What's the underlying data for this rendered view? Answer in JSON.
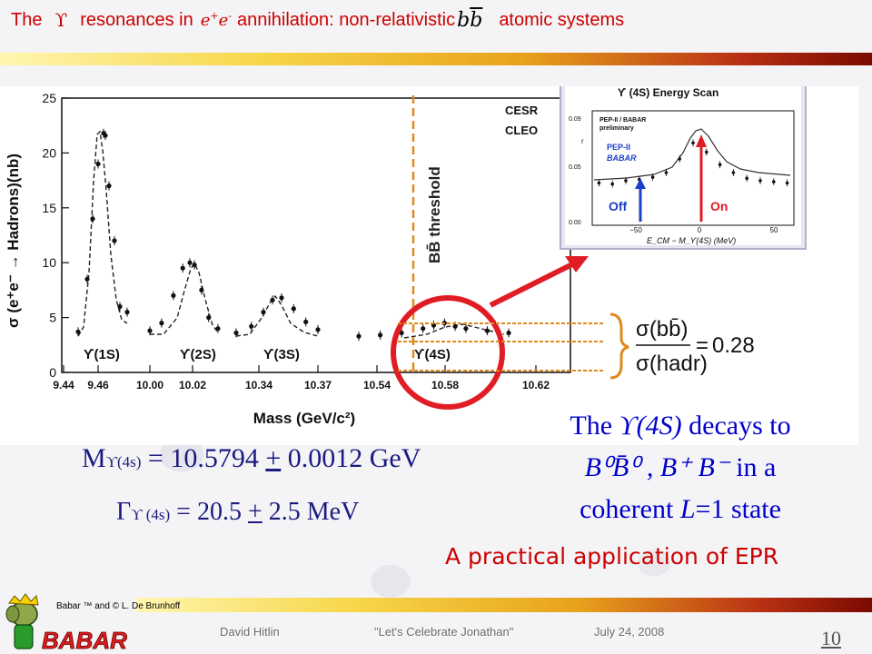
{
  "title": {
    "part1": "The",
    "upsilon": "ϒ",
    "part2": "resonances  in",
    "ee_base": "e",
    "ee_sup1": "+",
    "ee_mid": "e",
    "ee_sup2": "-",
    "part3": "annihilation: non-relativistic",
    "bb_b": "b",
    "bb_bbar": "b",
    "part4": "atomic systems",
    "color": "#cc0000"
  },
  "main_plot": {
    "threshold_label": "BB̄ threshold",
    "experiment_1": "CESR",
    "experiment_2": "CLEO",
    "y_axis_label": "σ (e⁺e⁻ → Hadrons)(nb)",
    "x_axis_label": "Mass (GeV/c²)",
    "peak_labels": [
      "ϒ(1S)",
      "ϒ(2S)",
      "ϒ(3S)",
      "ϒ(4S)"
    ]
  },
  "inset_plot": {
    "title": "ϒ (4S)  Energy Scan",
    "note_1": "PEP-II / BABAR",
    "note_2": "preliminary",
    "legend_1": "PEP-II",
    "legend_2": "BABAR",
    "off_label": "Off",
    "on_label": "On",
    "x_label": "E_CM − M_ϒ(4S)  (MeV)",
    "y_tick_labels": [
      "0.09",
      "r",
      "0.05",
      "0.00"
    ],
    "x_tick_labels": [
      "−50",
      "0",
      "50"
    ]
  },
  "ratio": {
    "num": "σ(bb̄)",
    "den": "σ(hadr)",
    "value": "0.28"
  },
  "results": {
    "mass_symbol": "M",
    "mass_sub": "ϒ(4s)",
    "mass_value": "= 10.5794",
    "mass_pm": "+",
    "mass_err": "0.0012 GeV",
    "gamma_symbol": "Γ",
    "gamma_sub": "ϒ (4s)",
    "gamma_value": "= 20.5",
    "gamma_pm": "+",
    "gamma_err": "2.5 MeV"
  },
  "decay": {
    "line1_a": "The",
    "line1_b": "ϒ(4S)",
    "line1_c": "decays to",
    "line2_a": "B⁰B̄⁰ ,  B⁺ B⁻",
    "line2_b": "in a",
    "line3_a": "coherent",
    "line3_b": "L",
    "line3_c": "=1 state"
  },
  "epr_text": "A practical application of EPR",
  "credit": "Babar ™ and © L. De Brunhoff",
  "logo_text": "BABAR",
  "footer": {
    "author": "David Hitlin",
    "event": "\"Let's Celebrate Jonathan\"",
    "date": "July 24, 2008",
    "page": "10"
  },
  "chart_data": [
    {
      "type": "scatter",
      "title": "",
      "xlabel": "Mass (GeV/c²)",
      "ylabel": "σ (e⁺e⁻ → Hadrons)(nb)",
      "ylim": [
        0,
        25
      ],
      "y_ticks": [
        0,
        5,
        10,
        15,
        20,
        25
      ],
      "x_tick_labels": [
        "9.44",
        "9.46",
        "10.00",
        "10.02",
        "10.34",
        "10.37",
        "10.54",
        "10.58",
        "10.62"
      ],
      "annotations": [
        "CESR",
        "CLEO",
        "BB̄ threshold",
        "ϒ(1S)",
        "ϒ(2S)",
        "ϒ(3S)",
        "ϒ(4S)"
      ],
      "series": [
        {
          "name": "ϒ(1S)",
          "x": [
            9.445,
            9.45,
            9.453,
            9.456,
            9.459,
            9.46,
            9.462,
            9.465,
            9.468,
            9.472
          ],
          "y": [
            3.7,
            8.5,
            14,
            19,
            21.8,
            21.6,
            17,
            12,
            6,
            5.5
          ]
        },
        {
          "name": "ϒ(2S)",
          "x": [
            10.005,
            10.01,
            10.015,
            10.019,
            10.022,
            10.024,
            10.027,
            10.03,
            10.034
          ],
          "y": [
            3.8,
            4.5,
            7,
            9.5,
            10,
            9.8,
            7.5,
            5,
            4
          ]
        },
        {
          "name": "ϒ(3S)",
          "x": [
            10.345,
            10.35,
            10.354,
            10.357,
            10.36,
            10.364,
            10.368,
            10.372
          ],
          "y": [
            3.6,
            4.2,
            5.5,
            6.6,
            6.8,
            5.8,
            4.6,
            3.9
          ]
        },
        {
          "name": "ϒ(4S)",
          "x": [
            10.54,
            10.55,
            10.56,
            10.57,
            10.575,
            10.58,
            10.585,
            10.59,
            10.6,
            10.61
          ],
          "y": [
            3.3,
            3.4,
            3.6,
            4.0,
            4.3,
            4.5,
            4.2,
            4.0,
            3.8,
            3.6
          ]
        }
      ],
      "threshold_x": 10.56
    },
    {
      "type": "scatter",
      "title": "ϒ (4S)  Energy Scan",
      "xlabel": "E_CM − M_ϒ(4S)  (MeV)",
      "ylabel": "r",
      "ylim": [
        0,
        0.1
      ],
      "xlim": [
        -75,
        75
      ],
      "series": [
        {
          "name": "PEP-II BABAR",
          "x": [
            -70,
            -60,
            -50,
            -40,
            -30,
            -20,
            -10,
            0,
            10,
            20,
            30,
            40,
            50,
            60,
            70
          ],
          "y": [
            0.037,
            0.036,
            0.039,
            0.04,
            0.042,
            0.046,
            0.058,
            0.072,
            0.064,
            0.053,
            0.046,
            0.041,
            0.039,
            0.038,
            0.037
          ]
        }
      ]
    }
  ]
}
